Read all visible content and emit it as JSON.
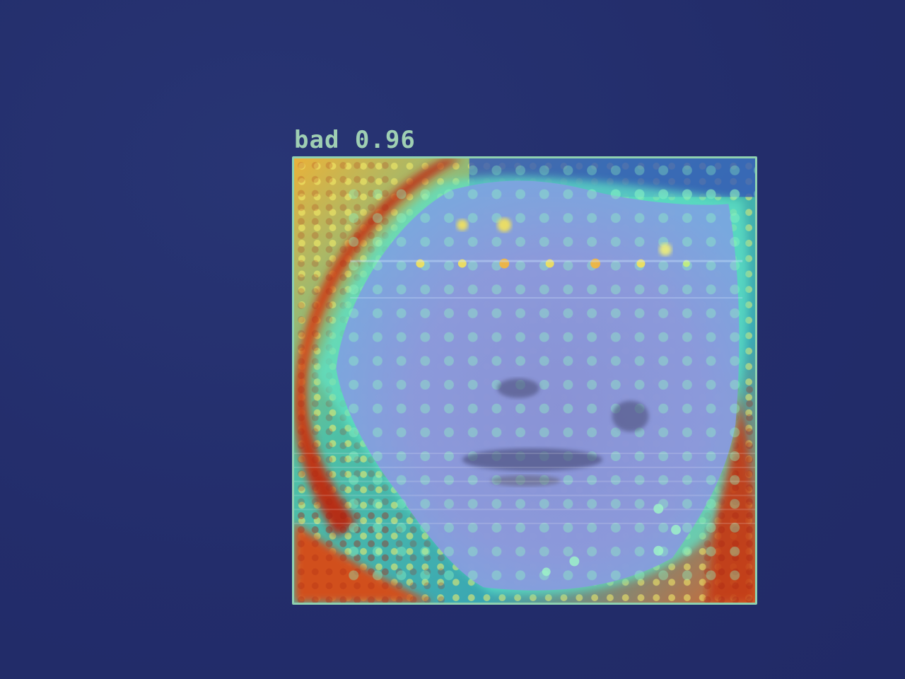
{
  "detection": {
    "class_label": "bad",
    "confidence": "0.96",
    "box_color": "#8fd1b0"
  },
  "overlay": {
    "type": "heatmap",
    "colormap": "jet"
  },
  "background_color": "#242e6e"
}
